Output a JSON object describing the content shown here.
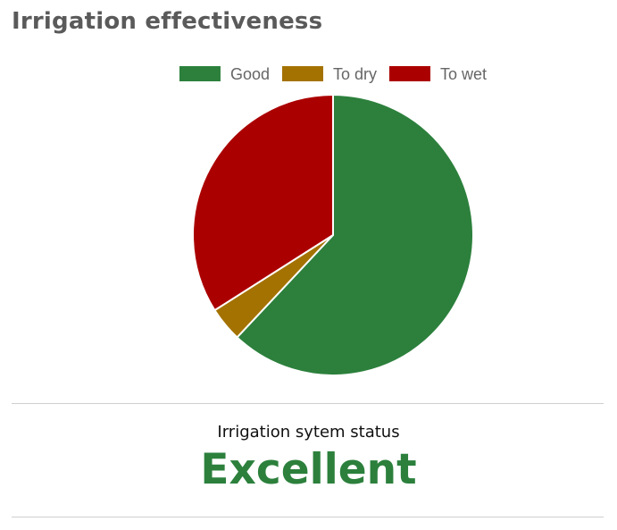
{
  "header": {
    "title": "Irrigation effectiveness"
  },
  "chart_data": {
    "type": "pie",
    "title": "",
    "legend_position": "top",
    "categories": [
      "Good",
      "To dry",
      "To wet"
    ],
    "values": [
      62,
      4,
      34
    ],
    "colors": [
      "#2c803c",
      "#a47200",
      "#ab0000"
    ]
  },
  "status": {
    "label": "Irrigation sytem status",
    "value": "Excellent",
    "value_color": "#2c803c"
  }
}
